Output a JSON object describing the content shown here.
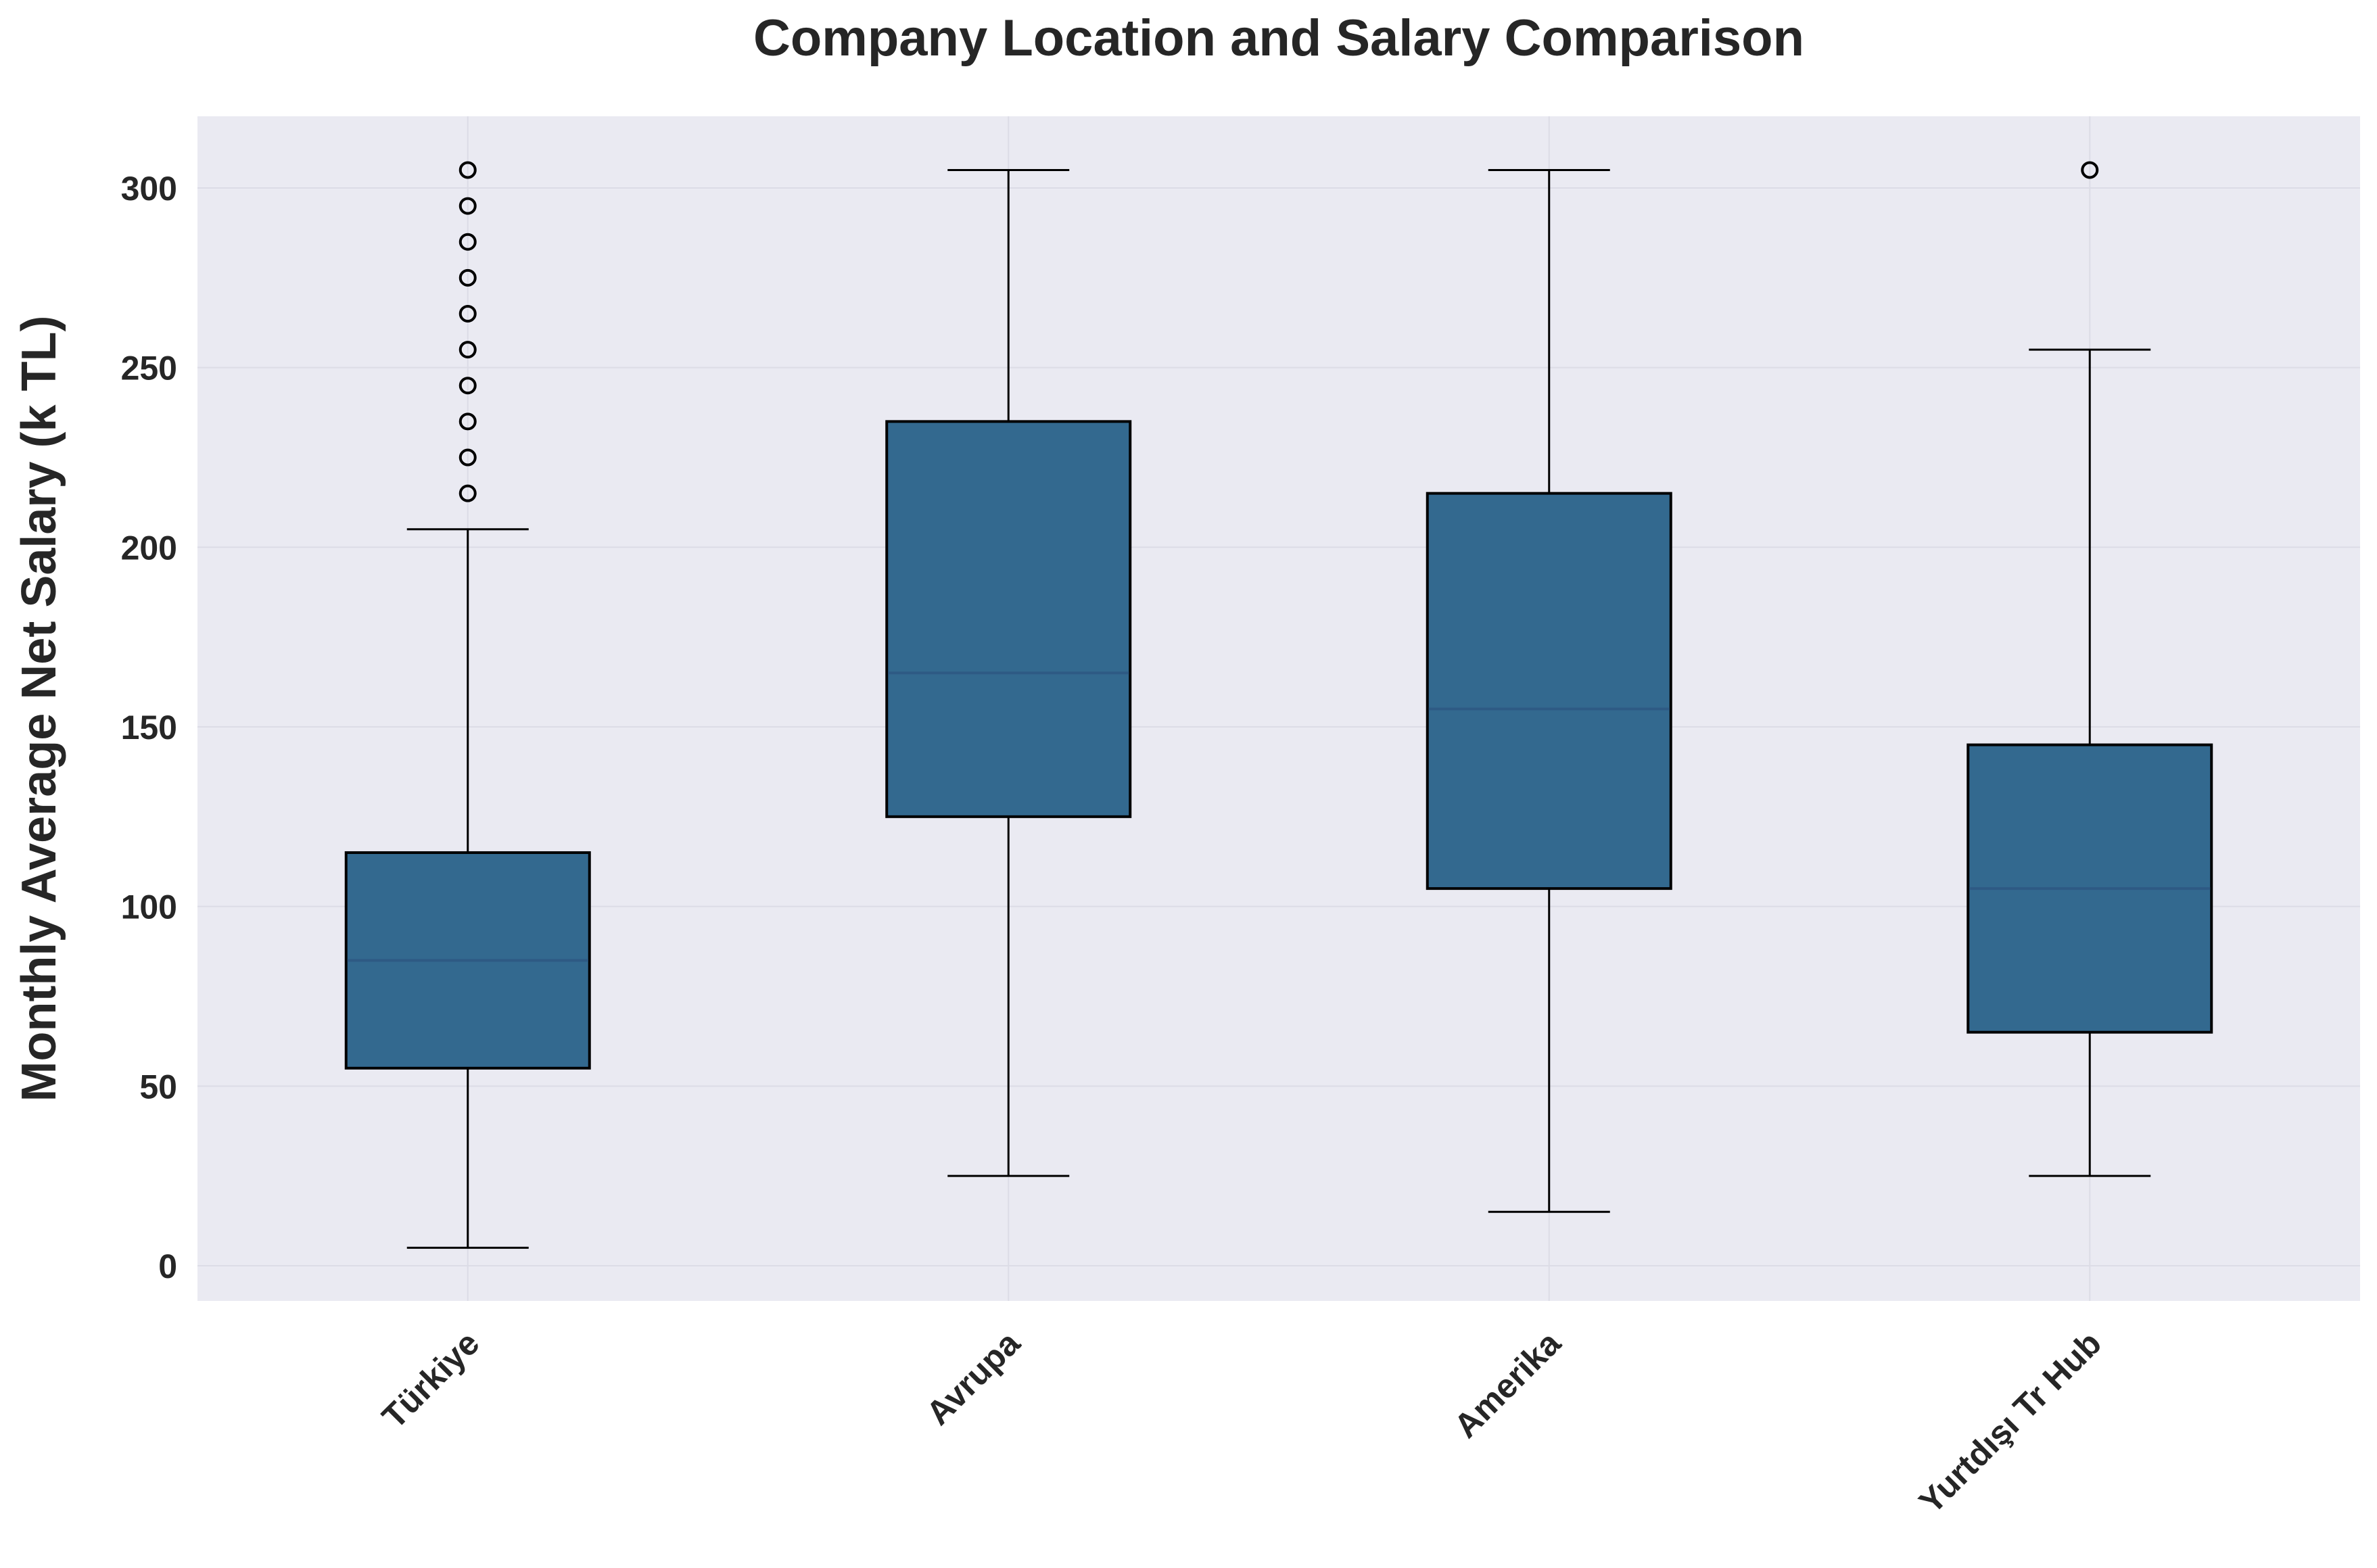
{
  "chart_data": {
    "type": "box",
    "title": "Company Location and Salary Comparison",
    "xlabel": "",
    "ylabel": "Monthly Average Net Salary (k TL)",
    "categories": [
      "Türkiye",
      "Avrupa",
      "Amerika",
      "Yurtdışı Tr Hub"
    ],
    "ylim": [
      -10,
      320
    ],
    "yticks": [
      0,
      50,
      100,
      150,
      200,
      250,
      300
    ],
    "ytick_labels": [
      "0",
      "50",
      "100",
      "150",
      "200",
      "250",
      "300"
    ],
    "boxes": [
      {
        "category": "Türkiye",
        "whisker_low": 5,
        "q1": 55,
        "median": 85,
        "q3": 115,
        "whisker_high": 205,
        "outliers": [
          215,
          225,
          235,
          245,
          255,
          265,
          275,
          285,
          295,
          305
        ]
      },
      {
        "category": "Avrupa",
        "whisker_low": 25,
        "q1": 125,
        "median": 165,
        "q3": 235,
        "whisker_high": 305,
        "outliers": []
      },
      {
        "category": "Amerika",
        "whisker_low": 15,
        "q1": 105,
        "median": 155,
        "q3": 215,
        "whisker_high": 305,
        "outliers": []
      },
      {
        "category": "Yurtdışı Tr Hub",
        "whisker_low": 25,
        "q1": 65,
        "median": 105,
        "q3": 145,
        "whisker_high": 255,
        "outliers": [
          305
        ]
      }
    ],
    "grid": true,
    "colors": {
      "box_fill": "#33698f",
      "median": "#2e5a84",
      "edge": "#000000",
      "plot_bg": "#eaeaf2",
      "grid": "#dcdce6"
    }
  }
}
